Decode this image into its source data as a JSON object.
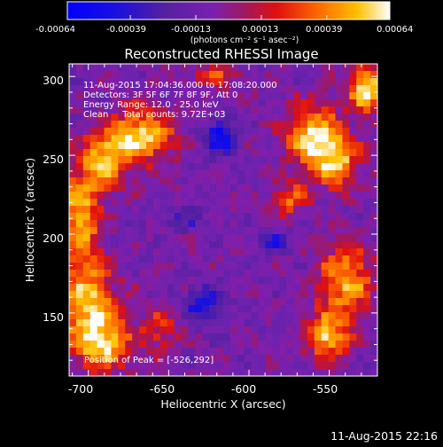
{
  "chart_data": {
    "type": "heatmap",
    "title": "Reconstructed RHESSI Image",
    "xlabel": "Heliocentric X (arcsec)",
    "ylabel": "Heliocentric Y (arcsec)",
    "xlim": [
      -712,
      -520
    ],
    "ylim": [
      110,
      308
    ],
    "x_ticks": [
      -700,
      -650,
      -600,
      -550
    ],
    "y_ticks": [
      150,
      200,
      250,
      300
    ],
    "colorbar": {
      "ticks": [
        "-0.00064",
        "-0.00039",
        "-0.00013",
        "0.00013",
        "0.00039",
        "0.00064"
      ],
      "units_line": "(photons cm⁻² s⁻¹ asec⁻²)",
      "range": [
        -0.00064,
        0.00064
      ]
    },
    "annotations": [
      "11-Aug-2015 17:04:36.000 to 17:08:20.000",
      "Detectors: 3F 5F 6F 7F 8F 9F, Att 0",
      "Energy Range: 12.0 - 25.0 keV",
      "Clean     Total counts: 9.72E+03"
    ],
    "peak_label": "Position of Peak = [-526,292]",
    "peak_position": [
      -526,
      292
    ],
    "footer_timestamp": "11-Aug-2015 22:16",
    "sources": [
      {
        "x": -668,
        "y": 262,
        "sx": 14,
        "sy": 12,
        "a": 1.0
      },
      {
        "x": -690,
        "y": 246,
        "sx": 10,
        "sy": 12,
        "a": 0.8
      },
      {
        "x": -705,
        "y": 212,
        "sx": 9,
        "sy": 20,
        "a": 0.85
      },
      {
        "x": -700,
        "y": 155,
        "sx": 12,
        "sy": 20,
        "a": 0.9
      },
      {
        "x": -690,
        "y": 130,
        "sx": 12,
        "sy": 12,
        "a": 0.75
      },
      {
        "x": -655,
        "y": 140,
        "sx": 8,
        "sy": 10,
        "a": 0.5
      },
      {
        "x": -560,
        "y": 262,
        "sx": 12,
        "sy": 14,
        "a": 0.95
      },
      {
        "x": -545,
        "y": 245,
        "sx": 10,
        "sy": 12,
        "a": 0.8
      },
      {
        "x": -526,
        "y": 292,
        "sx": 8,
        "sy": 10,
        "a": 1.15
      },
      {
        "x": -540,
        "y": 170,
        "sx": 12,
        "sy": 16,
        "a": 0.85
      },
      {
        "x": -552,
        "y": 135,
        "sx": 9,
        "sy": 10,
        "a": 0.95
      },
      {
        "x": -575,
        "y": 222,
        "sx": 8,
        "sy": 8,
        "a": 0.55
      },
      {
        "x": -620,
        "y": 300,
        "sx": 12,
        "sy": 6,
        "a": 0.45
      },
      {
        "x": -618,
        "y": 262,
        "sx": 7,
        "sy": 8,
        "a": -0.75
      },
      {
        "x": -628,
        "y": 155,
        "sx": 8,
        "sy": 8,
        "a": -0.7
      },
      {
        "x": -585,
        "y": 195,
        "sx": 6,
        "sy": 6,
        "a": -0.45
      },
      {
        "x": -640,
        "y": 210,
        "sx": 8,
        "sy": 6,
        "a": -0.3
      }
    ]
  }
}
